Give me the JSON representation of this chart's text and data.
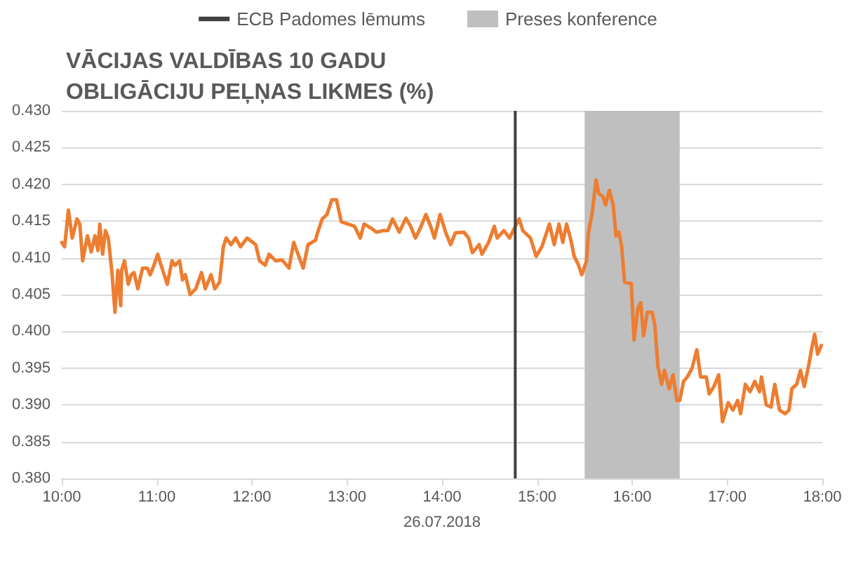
{
  "chart_data": {
    "type": "line",
    "title": "VĀCIJAS VALDĪBAS 10 GADU OBLIGĀCIJU PEĻŅAS LIKMES (%)",
    "xlabel": "26.07.2018",
    "x": [
      10.0,
      10.03,
      10.07,
      10.11,
      10.16,
      10.19,
      10.22,
      10.27,
      10.31,
      10.35,
      10.38,
      10.4,
      10.43,
      10.46,
      10.49,
      10.53,
      10.56,
      10.59,
      10.62,
      10.63,
      10.66,
      10.7,
      10.73,
      10.76,
      10.8,
      10.85,
      10.9,
      10.93,
      10.97,
      11.01,
      11.04,
      11.11,
      11.16,
      11.19,
      11.24,
      11.27,
      11.3,
      11.35,
      11.41,
      11.47,
      11.51,
      11.57,
      11.61,
      11.66,
      11.7,
      11.73,
      11.78,
      11.83,
      11.88,
      11.95,
      12.04,
      12.08,
      12.14,
      12.18,
      12.25,
      12.32,
      12.39,
      12.44,
      12.54,
      12.59,
      12.67,
      12.69,
      12.74,
      12.79,
      12.84,
      12.89,
      12.94,
      13.01,
      13.08,
      13.14,
      13.18,
      13.26,
      13.31,
      13.38,
      13.43,
      13.48,
      13.55,
      13.62,
      13.67,
      13.72,
      13.77,
      13.83,
      13.88,
      13.92,
      13.98,
      14.04,
      14.09,
      14.14,
      14.23,
      14.28,
      14.32,
      14.39,
      14.42,
      14.49,
      14.55,
      14.58,
      14.65,
      14.71,
      14.76,
      14.81,
      14.85,
      14.93,
      14.99,
      15.05,
      15.13,
      15.18,
      15.23,
      15.27,
      15.31,
      15.35,
      15.39,
      15.43,
      15.47,
      15.52,
      15.54,
      15.58,
      15.62,
      15.65,
      15.69,
      15.72,
      15.76,
      15.8,
      15.83,
      15.86,
      15.89,
      15.92,
      15.99,
      16.02,
      16.06,
      16.09,
      16.12,
      16.16,
      16.21,
      16.24,
      16.27,
      16.31,
      16.34,
      16.39,
      16.43,
      16.47,
      16.5,
      16.54,
      16.58,
      16.63,
      16.68,
      16.72,
      16.78,
      16.81,
      16.86,
      16.91,
      16.95,
      17.01,
      17.06,
      17.11,
      17.14,
      17.19,
      17.24,
      17.29,
      17.34,
      17.36,
      17.41,
      17.46,
      17.5,
      17.55,
      17.61,
      17.65,
      17.68,
      17.73,
      17.77,
      17.81,
      17.86,
      17.89,
      17.92,
      17.95,
      17.99
    ],
    "series": [
      {
        "color": "#ed7d31",
        "values": [
          0.4121,
          0.4115,
          0.4165,
          0.4127,
          0.4153,
          0.4146,
          0.4096,
          0.413,
          0.4108,
          0.413,
          0.411,
          0.4146,
          0.4105,
          0.4137,
          0.4127,
          0.4077,
          0.4026,
          0.4083,
          0.4035,
          0.4083,
          0.4096,
          0.4064,
          0.4077,
          0.408,
          0.4058,
          0.4086,
          0.4086,
          0.4077,
          0.409,
          0.4105,
          0.4092,
          0.4064,
          0.4096,
          0.409,
          0.4096,
          0.407,
          0.4077,
          0.405,
          0.4058,
          0.408,
          0.4058,
          0.4077,
          0.4058,
          0.4067,
          0.4115,
          0.4127,
          0.4118,
          0.4127,
          0.4115,
          0.4127,
          0.4118,
          0.4096,
          0.409,
          0.4105,
          0.4096,
          0.4097,
          0.4086,
          0.4121,
          0.4086,
          0.4118,
          0.4124,
          0.4134,
          0.4153,
          0.4159,
          0.4179,
          0.4179,
          0.4149,
          0.4146,
          0.4143,
          0.4127,
          0.4146,
          0.414,
          0.4135,
          0.4137,
          0.4137,
          0.4153,
          0.4135,
          0.4154,
          0.4143,
          0.4127,
          0.414,
          0.4159,
          0.4143,
          0.4127,
          0.4159,
          0.4134,
          0.4118,
          0.4134,
          0.4135,
          0.4127,
          0.4107,
          0.4118,
          0.4105,
          0.4121,
          0.4143,
          0.4127,
          0.4137,
          0.4127,
          0.414,
          0.4153,
          0.4137,
          0.4127,
          0.4102,
          0.4115,
          0.4146,
          0.4118,
          0.4146,
          0.4121,
          0.4146,
          0.4127,
          0.4102,
          0.4092,
          0.4077,
          0.4096,
          0.4134,
          0.4162,
          0.4206,
          0.4187,
          0.4184,
          0.4172,
          0.4192,
          0.4172,
          0.413,
          0.4135,
          0.4115,
          0.4067,
          0.4065,
          0.3988,
          0.4032,
          0.4039,
          0.3994,
          0.4026,
          0.4026,
          0.4007,
          0.3953,
          0.3928,
          0.3947,
          0.3922,
          0.3941,
          0.3906,
          0.3906,
          0.3932,
          0.3938,
          0.395,
          0.3975,
          0.3938,
          0.3938,
          0.3915,
          0.3925,
          0.3941,
          0.3877,
          0.3903,
          0.3893,
          0.3906,
          0.3888,
          0.3928,
          0.3918,
          0.3932,
          0.3918,
          0.3938,
          0.39,
          0.3897,
          0.3928,
          0.3893,
          0.3888,
          0.3893,
          0.3922,
          0.3928,
          0.3947,
          0.3925,
          0.3956,
          0.3978,
          0.3996,
          0.3969,
          0.3981
        ]
      }
    ],
    "xlim": [
      10,
      18
    ],
    "xticks": [
      {
        "value": 10,
        "label": "10:00"
      },
      {
        "value": 11,
        "label": "11:00"
      },
      {
        "value": 12,
        "label": "12:00"
      },
      {
        "value": 13,
        "label": "13:00"
      },
      {
        "value": 14,
        "label": "14:00"
      },
      {
        "value": 15,
        "label": "15:00"
      },
      {
        "value": 16,
        "label": "16:00"
      },
      {
        "value": 17,
        "label": "17:00"
      },
      {
        "value": 18,
        "label": "18:00"
      }
    ],
    "ylim": [
      0.38,
      0.43
    ],
    "yticks": [
      {
        "value": 0.38,
        "label": "0.380"
      },
      {
        "value": 0.385,
        "label": "0.385"
      },
      {
        "value": 0.39,
        "label": "0.390"
      },
      {
        "value": 0.395,
        "label": "0.395"
      },
      {
        "value": 0.4,
        "label": "0.400"
      },
      {
        "value": 0.405,
        "label": "0.405"
      },
      {
        "value": 0.41,
        "label": "0.410"
      },
      {
        "value": 0.415,
        "label": "0.415"
      },
      {
        "value": 0.42,
        "label": "0.420"
      },
      {
        "value": 0.425,
        "label": "0.425"
      },
      {
        "value": 0.43,
        "label": "0.430"
      }
    ],
    "ref_lines": [
      {
        "axis": "x",
        "value": 14.77,
        "label": "ECB Padomes lēmums",
        "color": "#404040"
      }
    ],
    "bands": [
      {
        "axis": "x",
        "from": 15.5,
        "to": 16.5,
        "label": "Preses konference",
        "color": "#bfbfbf"
      }
    ],
    "grid": "y",
    "legend": "top",
    "marker": "none",
    "line_style": "solid"
  }
}
